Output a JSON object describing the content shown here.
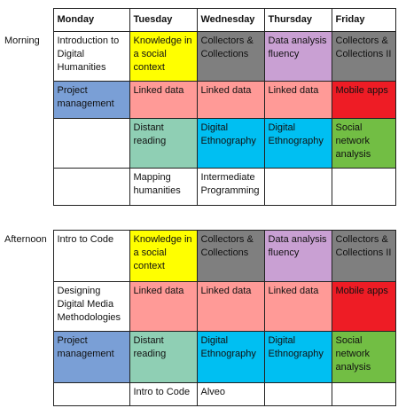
{
  "days": [
    "Monday",
    "Tuesday",
    "Wednesday",
    "Thursday",
    "Friday"
  ],
  "colors": {
    "yellow": "#ffff00",
    "grey": "#7f7f7f",
    "lilac": "#c9a0d3",
    "blue": "#7a9fd6",
    "salmon": "#ff9a97",
    "red": "#ee1c25",
    "teal": "#8fcfb4",
    "cyan": "#00bff2",
    "green": "#72be44",
    "white": "#ffffff"
  },
  "morning": {
    "label": "Morning",
    "rows": [
      [
        {
          "text": "Introduction to Digital Humanities",
          "color": "white"
        },
        {
          "text": "Knowledge in a social context",
          "color": "yellow"
        },
        {
          "text": "Collectors & Collections",
          "color": "grey"
        },
        {
          "text": "Data analysis fluency",
          "color": "lilac"
        },
        {
          "text": "Collectors & Collections II",
          "color": "grey"
        }
      ],
      [
        {
          "text": "Project management",
          "color": "blue"
        },
        {
          "text": "Linked data",
          "color": "salmon"
        },
        {
          "text": "Linked data",
          "color": "salmon"
        },
        {
          "text": "Linked data",
          "color": "salmon"
        },
        {
          "text": "Mobile apps",
          "color": "red"
        }
      ],
      [
        {
          "text": "",
          "color": "white"
        },
        {
          "text": "Distant reading",
          "color": "teal"
        },
        {
          "text": "Digital Ethnography",
          "color": "cyan"
        },
        {
          "text": "Digital Ethnography",
          "color": "cyan"
        },
        {
          "text": "Social network analysis",
          "color": "green"
        }
      ],
      [
        {
          "text": "",
          "color": "white"
        },
        {
          "text": "Mapping humanities",
          "color": "white"
        },
        {
          "text": "Intermediate Programming",
          "color": "white"
        },
        {
          "text": "",
          "color": "white"
        },
        {
          "text": "",
          "color": "white"
        }
      ]
    ]
  },
  "afternoon": {
    "label": "Afternoon",
    "rows": [
      [
        {
          "text": "Intro to Code",
          "color": "white"
        },
        {
          "text": "Knowledge in a social context",
          "color": "yellow"
        },
        {
          "text": "Collectors & Collections",
          "color": "grey"
        },
        {
          "text": "Data analysis fluency",
          "color": "lilac"
        },
        {
          "text": "Collectors & Collections II",
          "color": "grey"
        }
      ],
      [
        {
          "text": "Designing Digital Media Methodologies",
          "color": "white"
        },
        {
          "text": "Linked data",
          "color": "salmon"
        },
        {
          "text": "Linked data",
          "color": "salmon"
        },
        {
          "text": "Linked data",
          "color": "salmon"
        },
        {
          "text": "Mobile apps",
          "color": "red"
        }
      ],
      [
        {
          "text": "Project management",
          "color": "blue"
        },
        {
          "text": "Distant reading",
          "color": "teal"
        },
        {
          "text": "Digital Ethnography",
          "color": "cyan"
        },
        {
          "text": "Digital Ethnography",
          "color": "cyan"
        },
        {
          "text": "Social network analysis",
          "color": "green"
        }
      ],
      [
        {
          "text": "",
          "color": "white"
        },
        {
          "text": "Intro to Code",
          "color": "white"
        },
        {
          "text": "Alveo",
          "color": "white"
        },
        {
          "text": "",
          "color": "white"
        },
        {
          "text": "",
          "color": "white"
        }
      ]
    ]
  }
}
